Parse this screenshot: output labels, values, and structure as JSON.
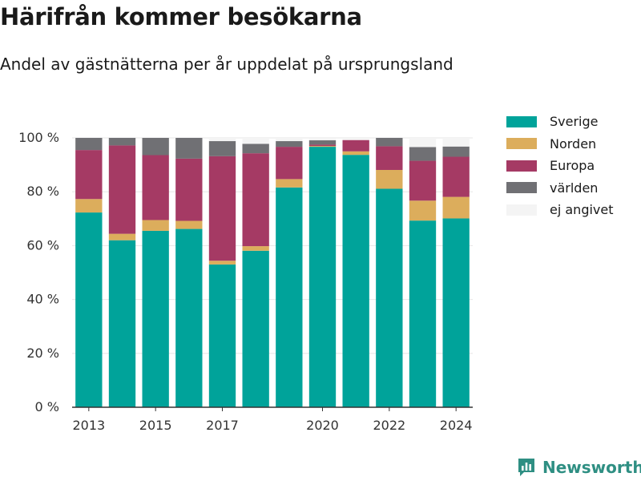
{
  "title": "Härifrån kommer besökarna",
  "subtitle": "Andel av gästnätterna per år uppdelat på ursprungsland",
  "brand": "Newsworthy",
  "chart_data": {
    "type": "bar",
    "stacked": true,
    "title": "",
    "xlabel": "",
    "ylabel": "",
    "ylim": [
      0,
      100
    ],
    "y_ticks": [
      0,
      20,
      40,
      60,
      80,
      100
    ],
    "y_tick_labels": [
      "0 %",
      "20 %",
      "40 %",
      "60 %",
      "80 %",
      "100 %"
    ],
    "x_tick_labels": [
      "2013",
      "2015",
      "2017",
      "2020",
      "2022",
      "2024"
    ],
    "grid": true,
    "legend_position": "top-right",
    "categories": [
      2013,
      2014,
      2015,
      2016,
      2017,
      2018,
      2019,
      2020,
      2021,
      2022,
      2023,
      2024
    ],
    "series": [
      {
        "name": "Sverige",
        "color": "#00a39a",
        "values": [
          72.3,
          62.0,
          65.5,
          66.2,
          53.0,
          58.1,
          81.6,
          96.7,
          93.7,
          81.1,
          69.3,
          70.1
        ]
      },
      {
        "name": "Norden",
        "color": "#dcad5c",
        "values": [
          5.0,
          2.4,
          4.0,
          3.0,
          1.4,
          1.7,
          3.1,
          0.3,
          1.3,
          7.0,
          7.4,
          8.0
        ]
      },
      {
        "name": "Europa",
        "color": "#a53a64",
        "values": [
          18.2,
          32.8,
          24.1,
          23.1,
          38.8,
          34.5,
          12.0,
          0.5,
          4.2,
          8.8,
          14.8,
          14.9
        ]
      },
      {
        "name": "världen",
        "color": "#707074",
        "values": [
          4.5,
          2.8,
          6.4,
          7.7,
          5.6,
          3.5,
          2.1,
          1.6,
          0.0,
          3.1,
          5.1,
          3.8
        ]
      },
      {
        "name": "ej angivet",
        "color": "#f4f4f4",
        "values": [
          0.0,
          0.0,
          0.0,
          0.0,
          1.2,
          2.2,
          1.2,
          0.9,
          0.8,
          0.0,
          3.4,
          3.2
        ]
      }
    ]
  }
}
